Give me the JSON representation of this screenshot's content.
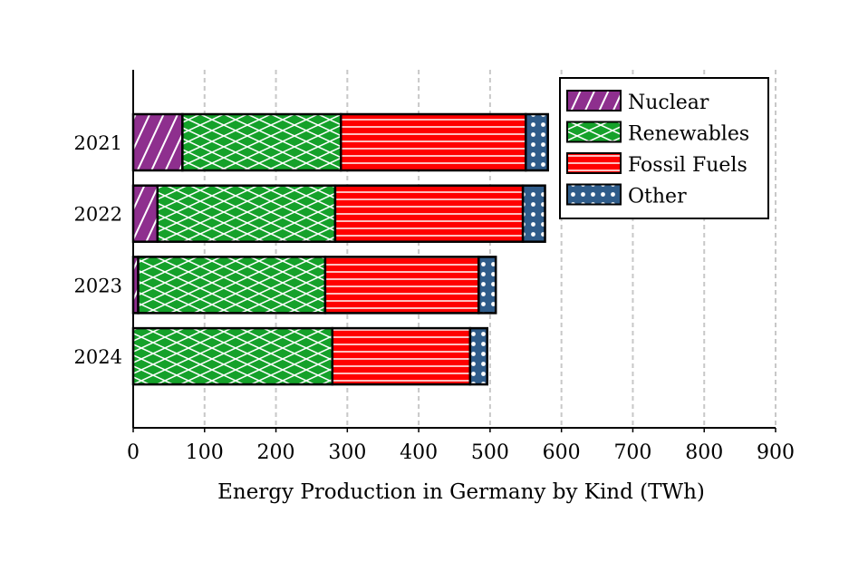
{
  "chart_data": {
    "type": "bar",
    "orientation": "horizontal",
    "stacked": true,
    "title": "",
    "xlabel": "Energy Production in Germany by Kind (TWh)",
    "ylabel": "",
    "xlim": [
      0,
      900
    ],
    "xticks": [
      "0",
      "100",
      "200",
      "300",
      "400",
      "500",
      "600",
      "700",
      "800",
      "900"
    ],
    "grid": "vertical dashed",
    "legend_position": "top-right",
    "categories": [
      "2021",
      "2022",
      "2023",
      "2024"
    ],
    "series": [
      {
        "name": "Nuclear",
        "values": [
          69,
          34,
          7,
          0
        ],
        "color": "#8e2f8e",
        "pattern": "diagonal"
      },
      {
        "name": "Renewables",
        "values": [
          222,
          249,
          262,
          279
        ],
        "color": "#15a12a",
        "pattern": "crosshatch"
      },
      {
        "name": "Fossil Fuels",
        "values": [
          259,
          263,
          215,
          193
        ],
        "color": "#ff0000",
        "pattern": "horizontal"
      },
      {
        "name": "Other",
        "values": [
          31,
          31,
          24,
          24
        ],
        "color": "#2f5c8a",
        "pattern": "dots"
      }
    ]
  }
}
